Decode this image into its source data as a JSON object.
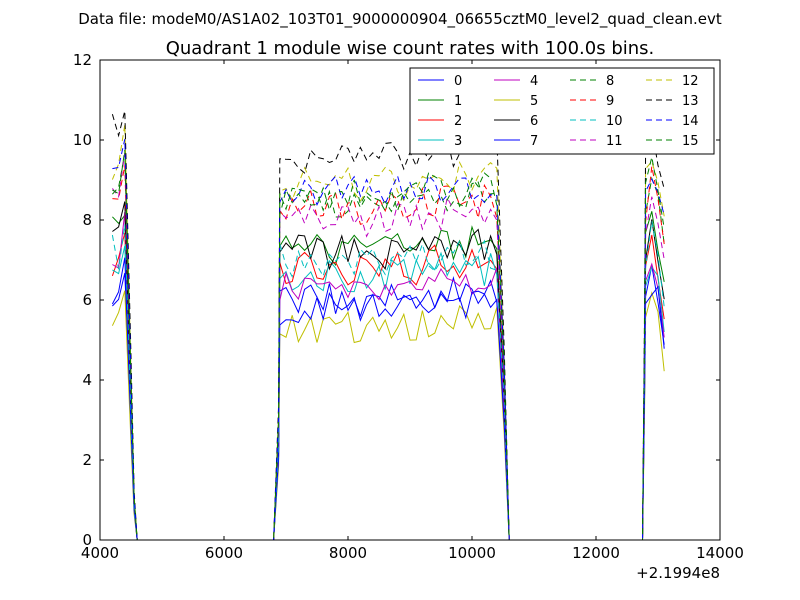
{
  "suptitle": "Data file: modeM0/AS1A02_103T01_9000000904_06655cztM0_level2_quad_clean.evt",
  "chart_data": {
    "type": "line",
    "title": "Quadrant 1 module wise count rates with 100.0s bins.",
    "xlabel": "",
    "ylabel": "",
    "x_offset_label": "+2.1994e8",
    "xlim": [
      4000,
      14000
    ],
    "ylim": [
      0,
      12
    ],
    "x_ticks": [
      4000,
      6000,
      8000,
      10000,
      12000,
      14000
    ],
    "y_ticks": [
      0,
      2,
      4,
      6,
      8,
      10,
      12
    ],
    "x_tick_labels": [
      "4000",
      "6000",
      "8000",
      "10000",
      "12000",
      "14000"
    ],
    "y_tick_labels": [
      "0",
      "2",
      "4",
      "6",
      "8",
      "10",
      "12"
    ],
    "grid": false,
    "legend_position": "top-right",
    "legend_columns": 4,
    "segments": [
      {
        "start": 4200,
        "count": 3,
        "step": 100
      },
      {
        "start": 6900,
        "count": 36,
        "step": 100
      },
      {
        "start": 12800,
        "count": 4,
        "step": 100
      }
    ],
    "series": [
      {
        "name": "0",
        "color": "#0000ff",
        "dashed": false,
        "levels": [
          6.3,
          6.0,
          6.0
        ]
      },
      {
        "name": "1",
        "color": "#008000",
        "dashed": false,
        "levels": [
          7.7,
          7.3,
          7.3
        ]
      },
      {
        "name": "2",
        "color": "#ff0000",
        "dashed": false,
        "levels": [
          7.0,
          6.8,
          6.9
        ]
      },
      {
        "name": "3",
        "color": "#00bfbf",
        "dashed": false,
        "levels": [
          6.7,
          6.6,
          6.6
        ]
      },
      {
        "name": "4",
        "color": "#bf00bf",
        "dashed": false,
        "levels": [
          7.0,
          6.3,
          6.3
        ]
      },
      {
        "name": "5",
        "color": "#bfbf00",
        "dashed": false,
        "levels": [
          5.4,
          5.3,
          5.3
        ]
      },
      {
        "name": "6",
        "color": "#000000",
        "dashed": false,
        "levels": [
          7.6,
          7.2,
          7.2
        ]
      },
      {
        "name": "7",
        "color": "#0000ff",
        "dashed": false,
        "levels": [
          6.2,
          5.8,
          5.9
        ]
      },
      {
        "name": "8",
        "color": "#008000",
        "dashed": true,
        "levels": [
          8.8,
          8.4,
          8.5
        ]
      },
      {
        "name": "9",
        "color": "#ff0000",
        "dashed": true,
        "levels": [
          8.5,
          8.3,
          8.3
        ]
      },
      {
        "name": "10",
        "color": "#00bfbf",
        "dashed": true,
        "levels": [
          7.2,
          7.0,
          7.0
        ]
      },
      {
        "name": "11",
        "color": "#bf00bf",
        "dashed": true,
        "levels": [
          8.5,
          8.0,
          8.0
        ]
      },
      {
        "name": "12",
        "color": "#bfbf00",
        "dashed": true,
        "levels": [
          9.3,
          8.9,
          9.0
        ]
      },
      {
        "name": "13",
        "color": "#000000",
        "dashed": true,
        "levels": [
          10.2,
          9.6,
          9.7
        ]
      },
      {
        "name": "14",
        "color": "#0000ff",
        "dashed": true,
        "levels": [
          9.0,
          8.7,
          8.8
        ]
      },
      {
        "name": "15",
        "color": "#008000",
        "dashed": true,
        "levels": [
          8.8,
          8.6,
          8.6
        ]
      }
    ]
  }
}
